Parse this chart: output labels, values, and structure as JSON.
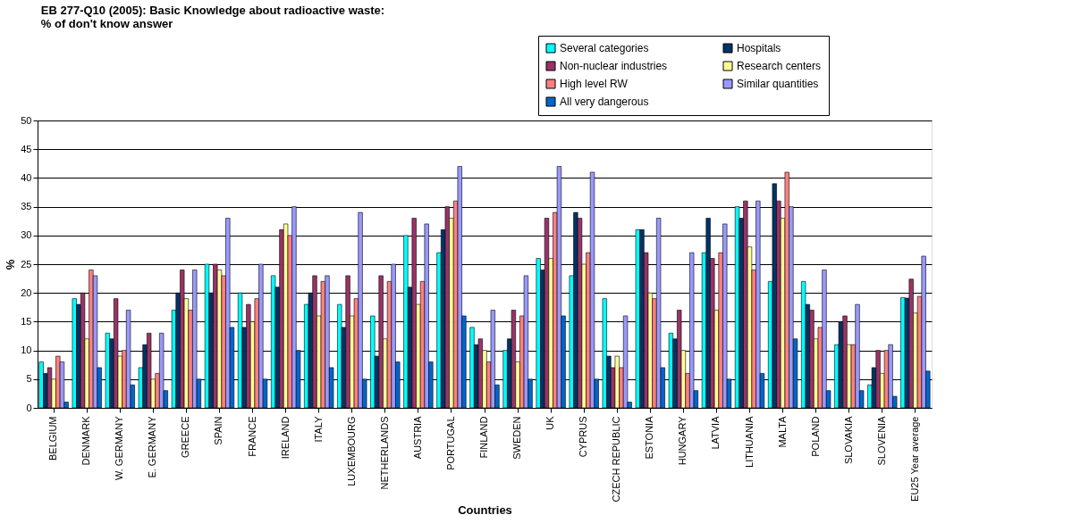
{
  "chart_data": {
    "type": "bar",
    "title": "EB 277-Q10 (2005): Basic Knowledge about radioactive waste:\n% of don't know answer",
    "xlabel": "Countries",
    "ylabel": "%",
    "categories": [
      "BELGIUM",
      "DENMARK",
      "W. GERMANY",
      "E. GERMANY",
      "GREECE",
      "SPAIN",
      "FRANCE",
      "IRELAND",
      "ITALY",
      "LUXEMBOURG",
      "NETHERLANDS",
      "AUSTRIA",
      "PORTUGAL",
      "FINLAND",
      "SWEDEN",
      "UK",
      "CYPRUS",
      "CZECH REPUBLIC",
      "ESTONIA",
      "HUNGARY",
      "LATVIA",
      "LITHUANIA",
      "MALTA",
      "POLAND",
      "SLOVAKIA",
      "SLOVENIA",
      "EU25 Year average"
    ],
    "series": [
      {
        "name": "Several categories",
        "color": "#00ffff",
        "values": [
          8,
          19,
          13,
          7,
          17,
          25,
          20,
          23,
          18,
          18,
          16,
          30,
          27,
          14,
          10,
          26,
          23,
          19,
          31,
          13,
          27,
          35,
          22,
          22,
          11,
          4,
          19.2
        ]
      },
      {
        "name": "Hospitals",
        "color": "#003366",
        "values": [
          6,
          18,
          12,
          11,
          20,
          20,
          14,
          21,
          20,
          14,
          9,
          21,
          31,
          11,
          12,
          24,
          34,
          9,
          31,
          12,
          33,
          33,
          39,
          18,
          15,
          7,
          19.1
        ]
      },
      {
        "name": "Non-nuclear industries",
        "color": "#993366",
        "values": [
          7,
          20,
          19,
          13,
          24,
          25,
          18,
          31,
          23,
          23,
          23,
          33,
          35,
          12,
          17,
          33,
          33,
          7,
          27,
          17,
          26,
          36,
          36,
          17,
          16,
          10,
          22.4
        ]
      },
      {
        "name": "Research centers",
        "color": "#ffff99",
        "values": [
          5,
          12,
          9,
          5,
          19,
          24,
          15,
          32,
          16,
          16,
          12,
          18,
          33,
          10,
          8,
          26,
          25,
          9,
          20,
          10,
          17,
          28,
          33,
          12,
          11,
          6,
          16.5
        ]
      },
      {
        "name": "High level RW",
        "color": "#ff8080",
        "values": [
          9,
          24,
          10,
          6,
          17,
          23,
          19,
          30,
          22,
          19,
          22,
          22,
          36,
          8,
          16,
          34,
          27,
          7,
          19,
          6,
          27,
          24,
          41,
          14,
          11,
          10,
          19.4
        ]
      },
      {
        "name": "Similar quantities",
        "color": "#9999ff",
        "values": [
          8,
          23,
          17,
          13,
          24,
          33,
          25,
          35,
          23,
          34,
          25,
          32,
          42,
          17,
          23,
          42,
          41,
          16,
          33,
          27,
          32,
          36,
          35,
          24,
          18,
          11,
          26.4
        ]
      },
      {
        "name": "All very dangerous",
        "color": "#0066cc",
        "values": [
          1,
          7,
          4,
          3,
          5,
          14,
          5,
          10,
          7,
          5,
          8,
          8,
          16,
          4,
          5,
          16,
          5,
          1,
          7,
          3,
          5,
          6,
          12,
          3,
          3,
          2,
          6.4
        ]
      }
    ],
    "ylim": [
      0,
      50
    ],
    "yticks": [
      0,
      5,
      10,
      15,
      20,
      25,
      30,
      35,
      40,
      45,
      50
    ],
    "grid": "y",
    "legend": "top right"
  }
}
